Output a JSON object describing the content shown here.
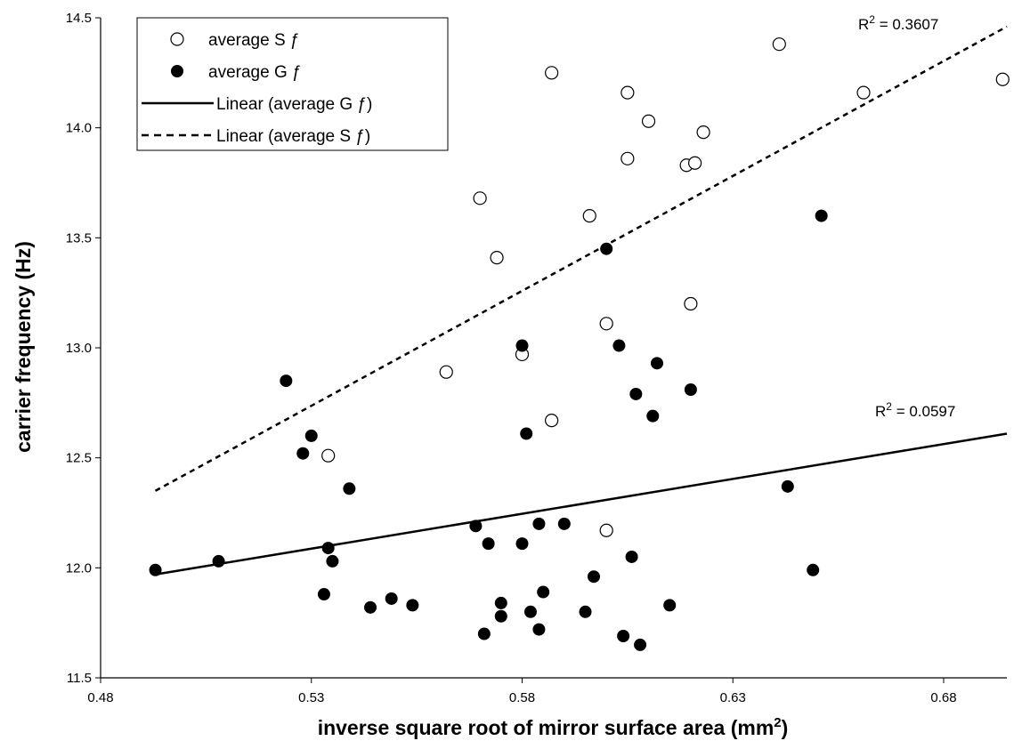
{
  "chart_data": {
    "type": "scatter",
    "xlabel": "inverse square root of mirror surface area (mm",
    "xlabel_sup": "2",
    "xlabel_end": ")",
    "ylabel": "carrier frequency (Hz)",
    "xlim": [
      0.48,
      0.695
    ],
    "ylim": [
      11.5,
      14.5
    ],
    "x_ticks": [
      0.48,
      0.53,
      0.58,
      0.63,
      0.68
    ],
    "x_tick_labels": [
      "0.48",
      "0.53",
      "0.58",
      "0.63",
      "0.68"
    ],
    "y_ticks": [
      11.5,
      12.0,
      12.5,
      13.0,
      13.5,
      14.0,
      14.5
    ],
    "y_tick_labels": [
      "11.5",
      "12.0",
      "12.5",
      "13.0",
      "13.5",
      "14.0",
      "14.5"
    ],
    "grid": false,
    "legend_position": "top-left",
    "series": [
      {
        "name": "average S ƒ",
        "marker": "open-circle",
        "points": [
          [
            0.534,
            12.51
          ],
          [
            0.562,
            12.89
          ],
          [
            0.57,
            13.68
          ],
          [
            0.574,
            13.41
          ],
          [
            0.58,
            12.97
          ],
          [
            0.587,
            12.67
          ],
          [
            0.587,
            14.25
          ],
          [
            0.596,
            13.6
          ],
          [
            0.6,
            13.11
          ],
          [
            0.6,
            12.17
          ],
          [
            0.605,
            13.86
          ],
          [
            0.605,
            14.16
          ],
          [
            0.61,
            14.03
          ],
          [
            0.619,
            13.83
          ],
          [
            0.62,
            13.2
          ],
          [
            0.621,
            13.84
          ],
          [
            0.623,
            13.98
          ],
          [
            0.641,
            14.38
          ],
          [
            0.661,
            14.16
          ],
          [
            0.694,
            14.22
          ]
        ]
      },
      {
        "name": "average G ƒ",
        "marker": "filled-circle",
        "points": [
          [
            0.493,
            11.99
          ],
          [
            0.508,
            12.03
          ],
          [
            0.524,
            12.85
          ],
          [
            0.528,
            12.52
          ],
          [
            0.53,
            12.6
          ],
          [
            0.533,
            11.88
          ],
          [
            0.534,
            12.09
          ],
          [
            0.535,
            12.03
          ],
          [
            0.539,
            12.36
          ],
          [
            0.544,
            11.82
          ],
          [
            0.549,
            11.86
          ],
          [
            0.554,
            11.83
          ],
          [
            0.569,
            12.19
          ],
          [
            0.571,
            11.7
          ],
          [
            0.572,
            12.11
          ],
          [
            0.575,
            11.84
          ],
          [
            0.575,
            11.78
          ],
          [
            0.58,
            13.01
          ],
          [
            0.58,
            12.11
          ],
          [
            0.581,
            12.61
          ],
          [
            0.582,
            11.8
          ],
          [
            0.584,
            12.2
          ],
          [
            0.584,
            11.72
          ],
          [
            0.585,
            11.89
          ],
          [
            0.59,
            12.2
          ],
          [
            0.595,
            11.8
          ],
          [
            0.597,
            11.96
          ],
          [
            0.6,
            13.45
          ],
          [
            0.603,
            13.01
          ],
          [
            0.604,
            11.69
          ],
          [
            0.606,
            12.05
          ],
          [
            0.607,
            12.79
          ],
          [
            0.608,
            11.65
          ],
          [
            0.611,
            12.69
          ],
          [
            0.612,
            12.93
          ],
          [
            0.615,
            11.83
          ],
          [
            0.62,
            12.81
          ],
          [
            0.643,
            12.37
          ],
          [
            0.649,
            11.99
          ],
          [
            0.651,
            13.6
          ]
        ]
      },
      {
        "name": "Linear (average G ƒ)",
        "line": "solid",
        "points": [
          [
            0.493,
            11.97
          ],
          [
            0.695,
            12.61
          ]
        ],
        "r2_label": "R",
        "r2_sup": "2",
        "r2_value": " = 0.0597"
      },
      {
        "name": "Linear (average S ƒ)",
        "line": "dashed",
        "points": [
          [
            0.493,
            12.35
          ],
          [
            0.695,
            14.46
          ]
        ],
        "r2_label": "R",
        "r2_sup": "2",
        "r2_value": " = 0.3607"
      }
    ]
  }
}
